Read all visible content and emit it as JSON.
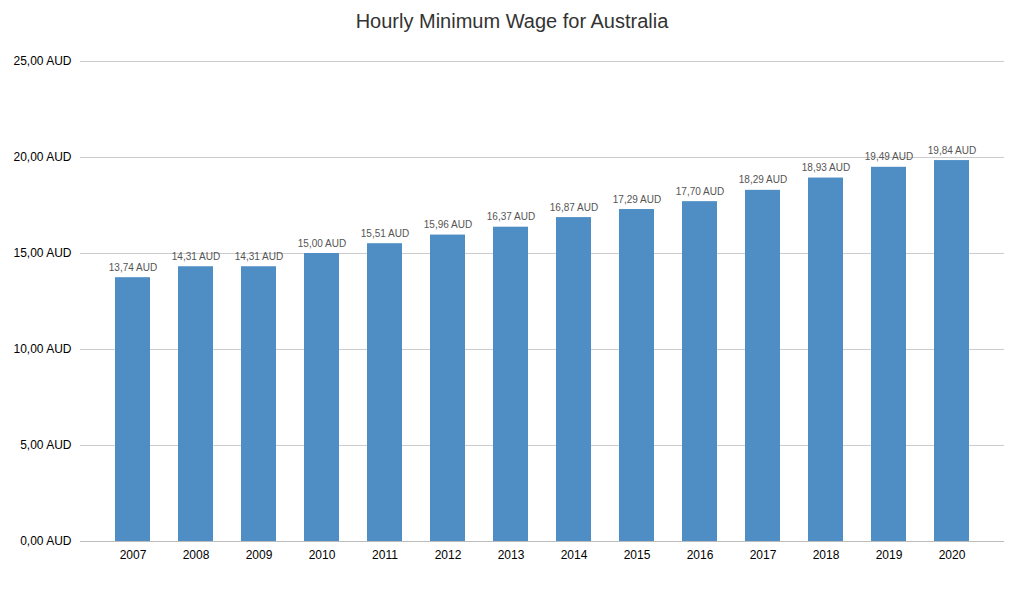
{
  "chart_data": {
    "type": "bar",
    "title": "Hourly Minimum Wage for Australia",
    "categories": [
      "2007",
      "2008",
      "2009",
      "2010",
      "2011",
      "2012",
      "2013",
      "2014",
      "2015",
      "2016",
      "2017",
      "2018",
      "2019",
      "2020"
    ],
    "values": [
      13.74,
      14.31,
      14.31,
      15.0,
      15.51,
      15.96,
      16.37,
      16.87,
      17.29,
      17.7,
      18.29,
      18.93,
      19.49,
      19.84
    ],
    "value_labels": [
      "13,74 AUD",
      "14,31 AUD",
      "14,31 AUD",
      "15,00 AUD",
      "15,51 AUD",
      "15,96 AUD",
      "16,37 AUD",
      "16,87 AUD",
      "17,29 AUD",
      "17,70 AUD",
      "18,29 AUD",
      "18,93 AUD",
      "19,49 AUD",
      "19,84 AUD"
    ],
    "data_labels": true,
    "color": "#4E8EC5",
    "ylim": [
      0,
      25
    ],
    "yticks": [
      {
        "value": 0,
        "label": "0,00 AUD"
      },
      {
        "value": 5,
        "label": "5,00 AUD"
      },
      {
        "value": 10,
        "label": "10,00 AUD"
      },
      {
        "value": 15,
        "label": "15,00 AUD"
      },
      {
        "value": 20,
        "label": "20,00 AUD"
      },
      {
        "value": 25,
        "label": "25,00 AUD"
      }
    ],
    "grid": true
  }
}
